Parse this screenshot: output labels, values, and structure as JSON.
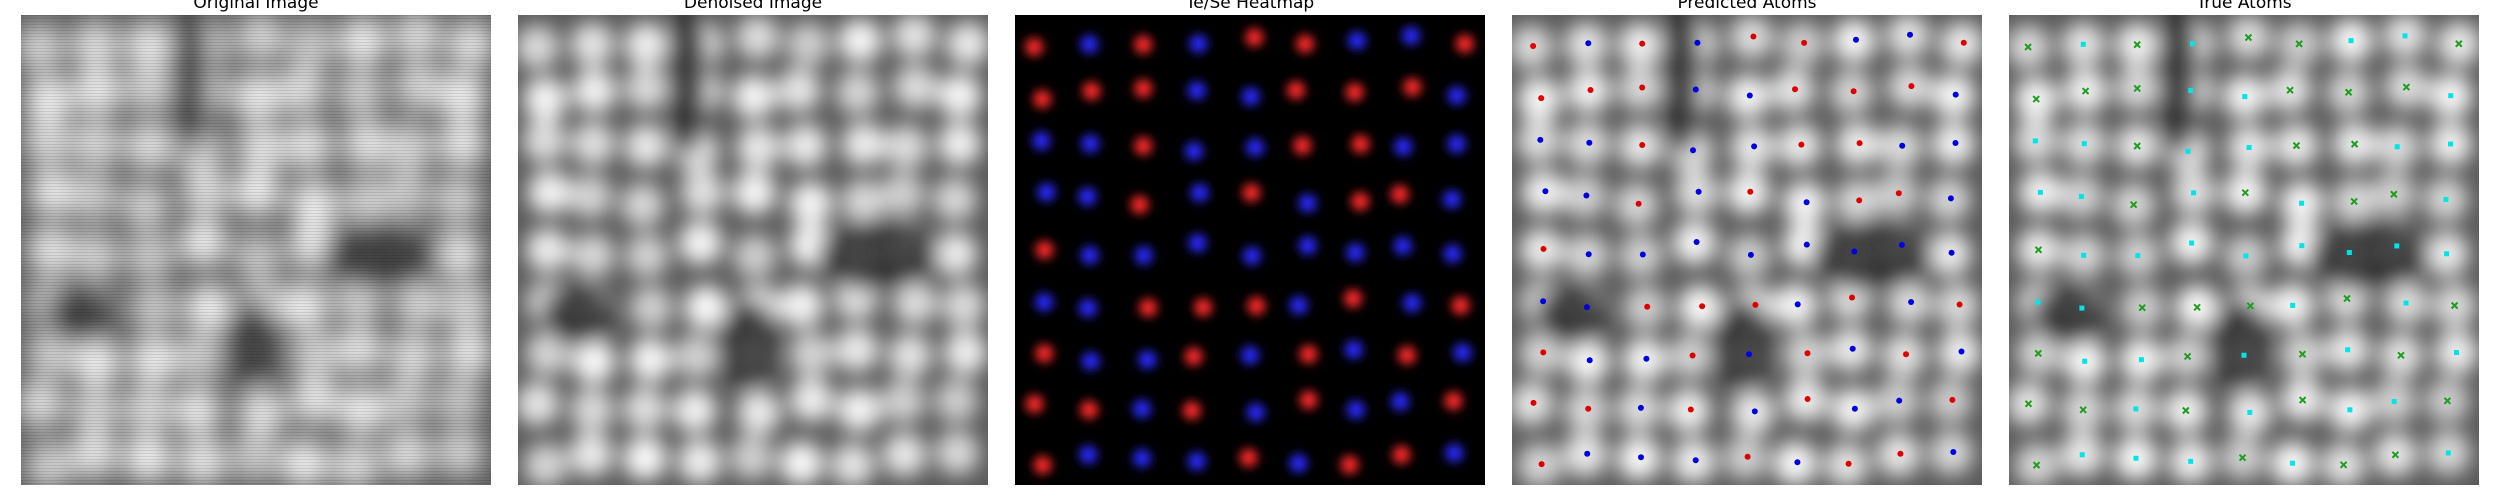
{
  "panels": [
    {
      "id": "original",
      "title": "Original Image"
    },
    {
      "id": "denoised",
      "title": "Denoised Image"
    },
    {
      "id": "heatmap",
      "title": "Te/Se Heatmap"
    },
    {
      "id": "predicted",
      "title": "Predicted Atoms"
    },
    {
      "id": "true",
      "title": "True Atoms"
    }
  ],
  "colors": {
    "te_heat": "#ff2a2a",
    "se_heat": "#2a2aff",
    "pred_te": "#e00000",
    "pred_se": "#0000e0",
    "true_te": "#1f9e1f",
    "true_se": "#00e5e5"
  },
  "lattice_species": [
    "RBRBRRBBR",
    "RRRBBRRRB",
    "BBRBBRRBB",
    "BBRBRBRRB",
    "RBBBBBBBB",
    "BBRRRBRBR",
    "RBBRBRBRB",
    "RRBRBRBBR",
    "RBBBRBRRB"
  ]
}
